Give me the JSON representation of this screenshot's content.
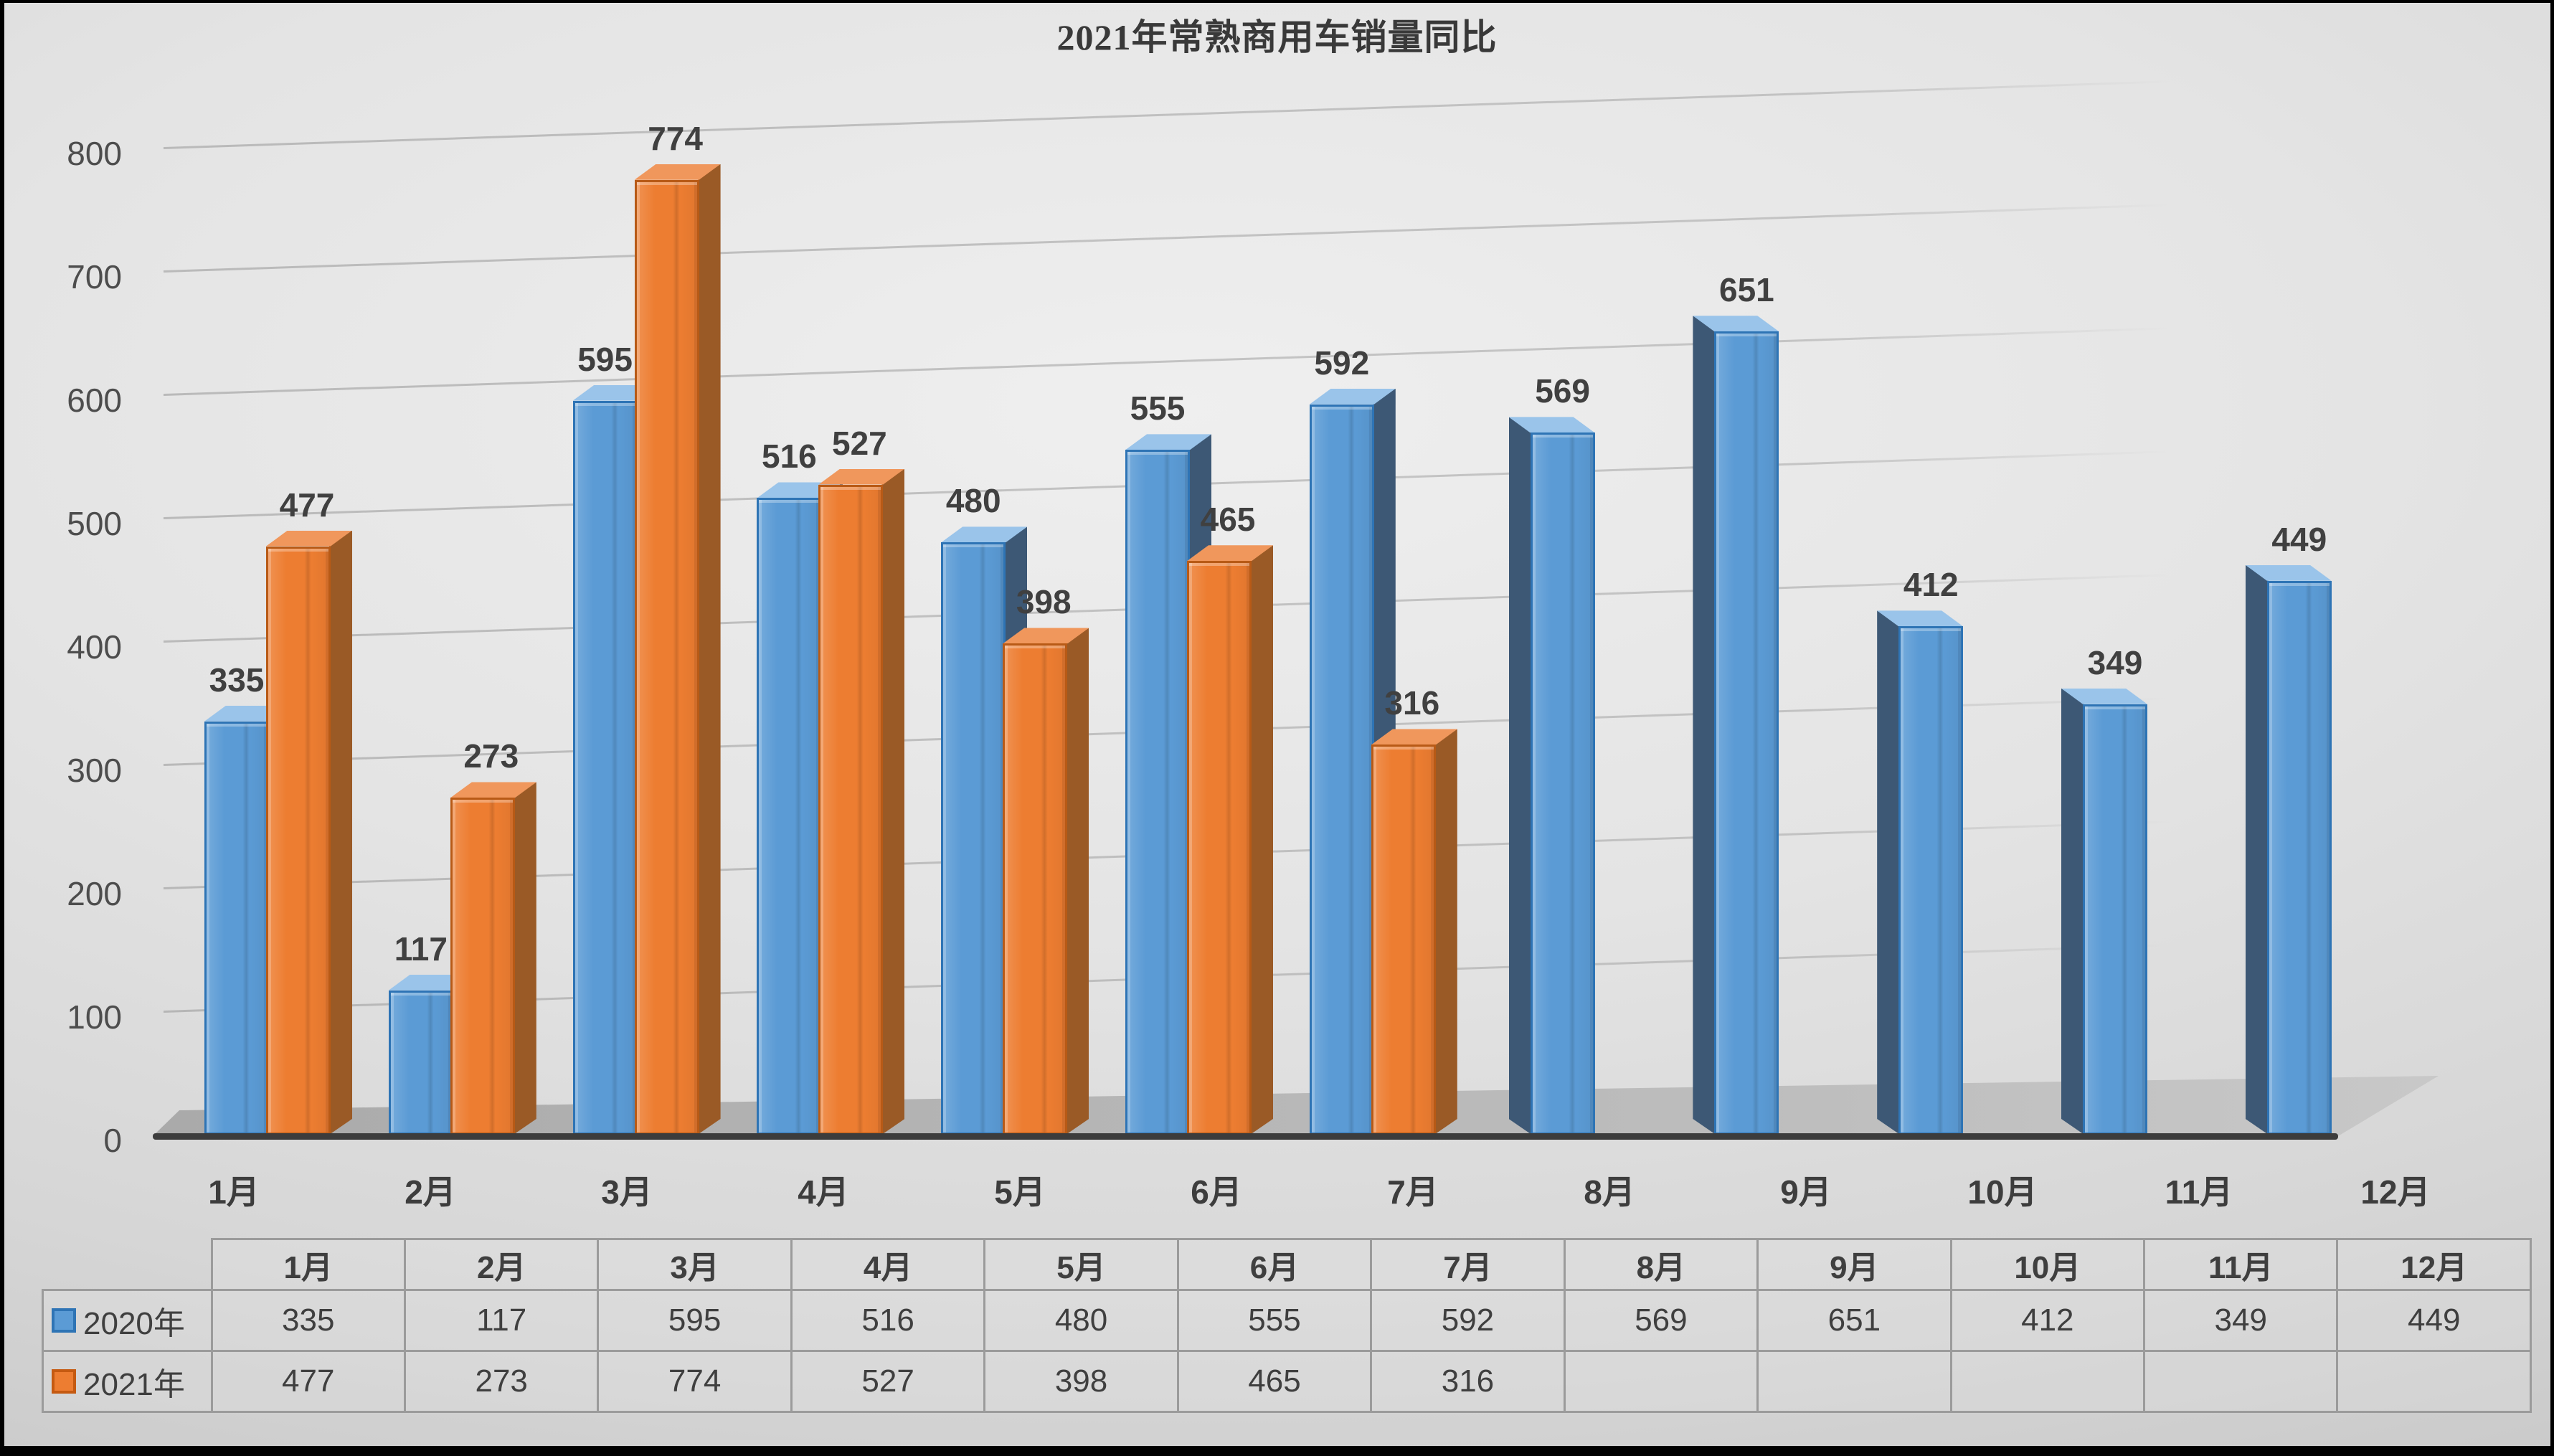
{
  "title": "2021年常熟商用车销量同比",
  "chart_data": {
    "type": "bar",
    "title": "2021年常熟商用车销量同比",
    "subtitle": "",
    "categories": [
      "1月",
      "2月",
      "3月",
      "4月",
      "5月",
      "6月",
      "7月",
      "8月",
      "9月",
      "10月",
      "11月",
      "12月"
    ],
    "series": [
      {
        "name": "2020年",
        "values": [
          335,
          117,
          595,
          516,
          480,
          555,
          592,
          569,
          651,
          412,
          349,
          449
        ],
        "color_front": "#5B9BD5",
        "color_border": "#2E74B5",
        "color_side": "#3D5875",
        "color_top": "#9AC4EA"
      },
      {
        "name": "2021年",
        "values": [
          477,
          273,
          774,
          527,
          398,
          465,
          316,
          null,
          null,
          null,
          null,
          null
        ],
        "color_front": "#ED7D31",
        "color_border": "#B85A16",
        "color_side": "#9A5A26",
        "color_top": "#F0975C"
      }
    ],
    "xlabel": "",
    "ylabel": "",
    "ylim": [
      0,
      800
    ],
    "y_ticks": [
      0,
      100,
      200,
      300,
      400,
      500,
      600,
      700,
      800
    ],
    "grid": true,
    "style": "3d-column",
    "legend_position": "table-left"
  },
  "table": {
    "columns": [
      "1月",
      "2月",
      "3月",
      "4月",
      "5月",
      "6月",
      "7月",
      "8月",
      "9月",
      "10月",
      "11月",
      "12月"
    ],
    "rows": [
      {
        "label": "2020年",
        "swatch_fill": "#5B9BD5",
        "swatch_border": "#2E74B5",
        "values": [
          "335",
          "117",
          "595",
          "516",
          "480",
          "555",
          "592",
          "569",
          "651",
          "412",
          "349",
          "449"
        ]
      },
      {
        "label": "2021年",
        "swatch_fill": "#ED7D31",
        "swatch_border": "#C55A11",
        "values": [
          "477",
          "273",
          "774",
          "527",
          "398",
          "465",
          "316",
          "",
          "",
          "",
          "",
          ""
        ]
      }
    ]
  }
}
